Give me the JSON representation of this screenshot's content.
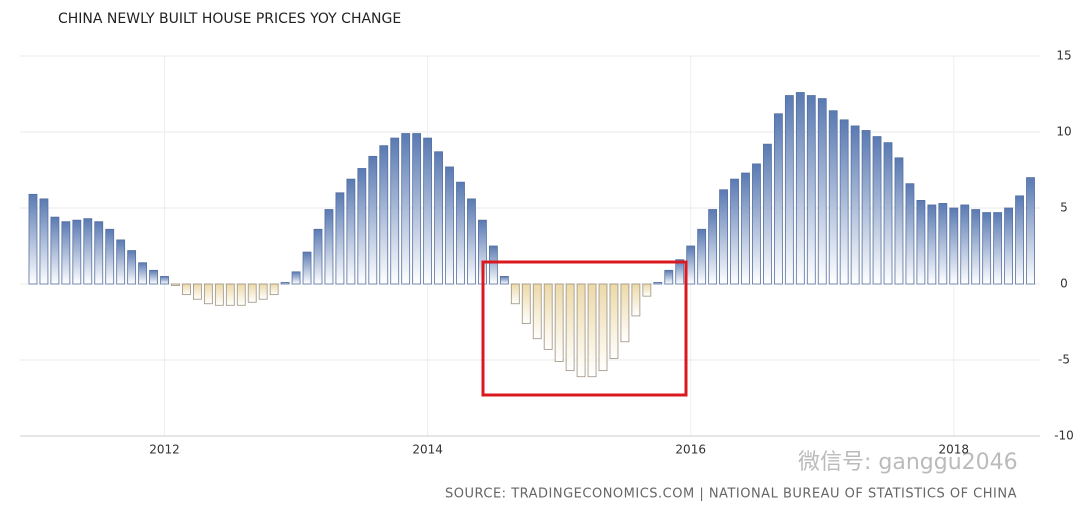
{
  "chart_data": {
    "type": "bar",
    "title": "CHINA NEWLY BUILT HOUSE PRICES YOY CHANGE",
    "source": "SOURCE: TRADINGECONOMICS.COM | NATIONAL BUREAU OF STATISTICS OF CHINA",
    "watermark": "微信号: ganggu2046",
    "categories": [
      null,
      null,
      null,
      null,
      null,
      null,
      null,
      null,
      null,
      null,
      null,
      null,
      "2012",
      null,
      null,
      null,
      null,
      null,
      null,
      null,
      null,
      null,
      null,
      null,
      null,
      null,
      null,
      null,
      null,
      null,
      null,
      null,
      null,
      null,
      null,
      null,
      "2014",
      null,
      null,
      null,
      null,
      null,
      null,
      null,
      null,
      null,
      null,
      null,
      null,
      null,
      null,
      null,
      null,
      null,
      null,
      null,
      null,
      null,
      null,
      null,
      "2016",
      null,
      null,
      null,
      null,
      null,
      null,
      null,
      null,
      null,
      null,
      null,
      null,
      null,
      null,
      null,
      null,
      null,
      null,
      null,
      null,
      null,
      null,
      null,
      "2018",
      null,
      null,
      null,
      null,
      null,
      null,
      null
    ],
    "values": [
      5.9,
      5.6,
      4.4,
      4.1,
      4.2,
      4.3,
      4.1,
      3.6,
      2.9,
      2.2,
      1.4,
      0.9,
      0.5,
      -0.1,
      -0.7,
      -1.0,
      -1.3,
      -1.4,
      -1.4,
      -1.4,
      -1.2,
      -1.0,
      -0.7,
      0.1,
      0.8,
      2.1,
      3.6,
      4.9,
      6.0,
      6.9,
      7.6,
      8.4,
      9.1,
      9.6,
      9.9,
      9.9,
      9.6,
      8.7,
      7.7,
      6.7,
      5.6,
      4.2,
      2.5,
      0.5,
      -1.3,
      -2.6,
      -3.6,
      -4.3,
      -5.1,
      -5.7,
      -6.1,
      -6.1,
      -5.7,
      -4.9,
      -3.8,
      -2.1,
      -0.8,
      0.1,
      0.9,
      1.6,
      2.5,
      3.6,
      4.9,
      6.2,
      6.9,
      7.3,
      7.9,
      9.2,
      11.2,
      12.4,
      12.6,
      12.4,
      12.2,
      11.4,
      10.8,
      10.4,
      10.1,
      9.7,
      9.3,
      8.3,
      6.6,
      5.5,
      5.2,
      5.3,
      5.0,
      5.2,
      4.9,
      4.7,
      4.7,
      5.0,
      5.8,
      7.0
    ],
    "color": "#5a7ab3",
    "negative_color": "#ecd9a8",
    "ylim": [
      -10,
      15
    ],
    "yticks": [
      -10,
      -5,
      0,
      5,
      10,
      15
    ],
    "grid": true
  }
}
